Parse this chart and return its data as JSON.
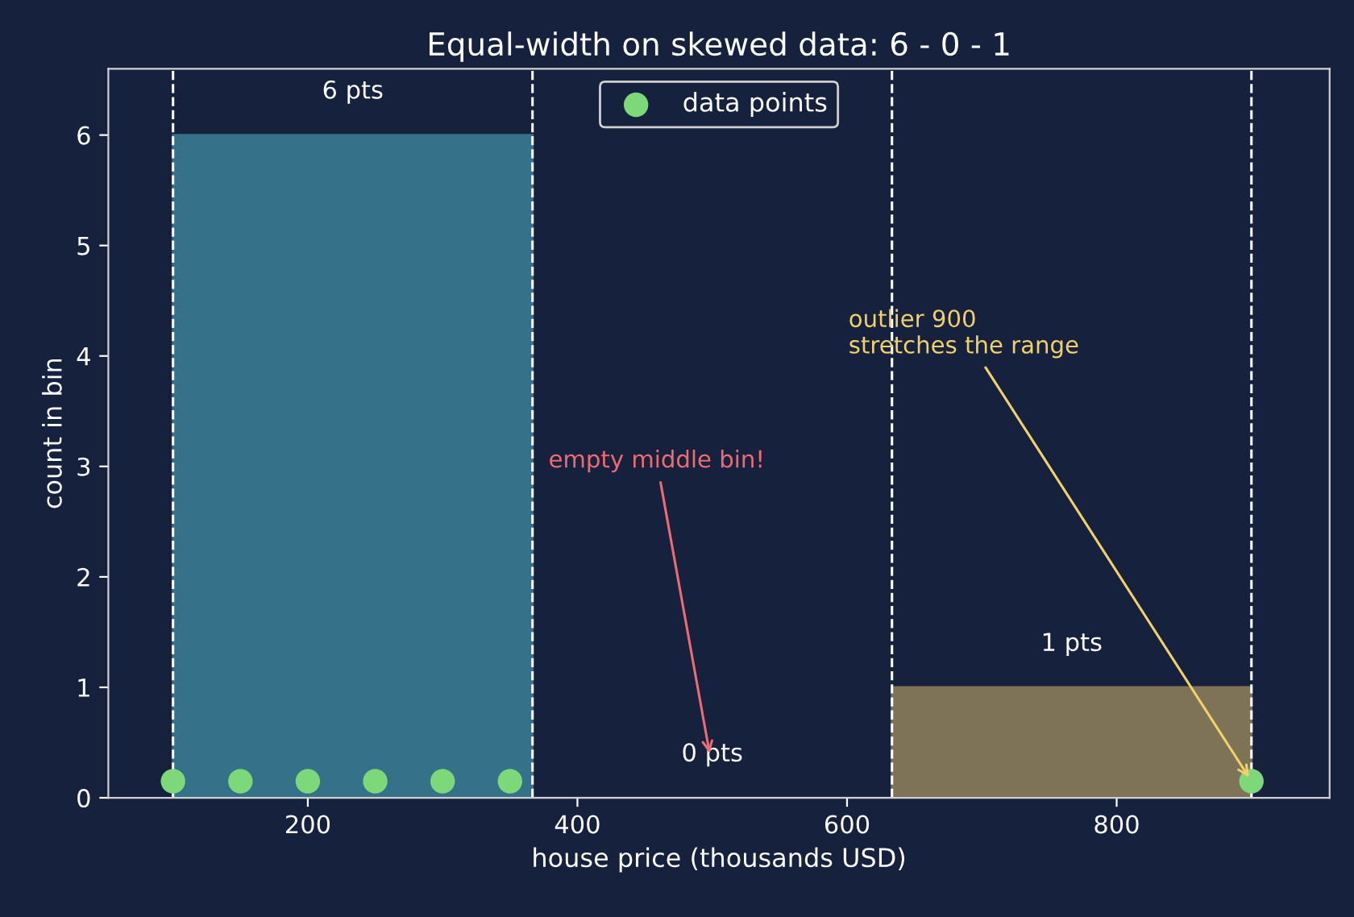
{
  "chart_data": {
    "type": "histogram",
    "title": "Equal-width on skewed data: 6 - 0 - 1",
    "xlabel": "house price (thousands USD)",
    "ylabel": "count in bin",
    "bins": [
      100,
      366.67,
      633.33,
      900
    ],
    "values": [
      6,
      0,
      1
    ],
    "colors": [
      "#3a7a93",
      "#3a7a93",
      "#8a7c5a"
    ],
    "value_labels": [
      "6 pts",
      "0 pts",
      "1 pts"
    ],
    "series": [
      {
        "type": "scatter",
        "name": "data points",
        "color": "#7dd87a",
        "x": [
          100,
          150,
          200,
          250,
          300,
          350,
          900
        ],
        "values": [
          0.15,
          0.15,
          0.15,
          0.15,
          0.15,
          0.15,
          0.15
        ]
      }
    ],
    "ref_lines": [
      {
        "axis": "x",
        "value": 100,
        "color": "#ffffff",
        "line_style": "dashed"
      },
      {
        "axis": "x",
        "value": 366.67,
        "color": "#ffffff",
        "line_style": "dashed"
      },
      {
        "axis": "x",
        "value": 633.33,
        "color": "#ffffff",
        "line_style": "dashed"
      },
      {
        "axis": "x",
        "value": 900,
        "color": "#ffffff",
        "line_style": "dashed"
      }
    ],
    "annotations": [
      "empty middle bin!",
      {
        "text": "outlier 900\nstretches the range",
        "x": 900,
        "y": 0.15
      }
    ],
    "xlim": [
      52,
      958
    ],
    "ylim": [
      0,
      6.6
    ],
    "xticks": [
      200,
      400,
      600,
      800
    ],
    "yticks": [
      0,
      1,
      2,
      3,
      4,
      5,
      6
    ],
    "grid": false,
    "legend": "top",
    "marker": "circle"
  }
}
